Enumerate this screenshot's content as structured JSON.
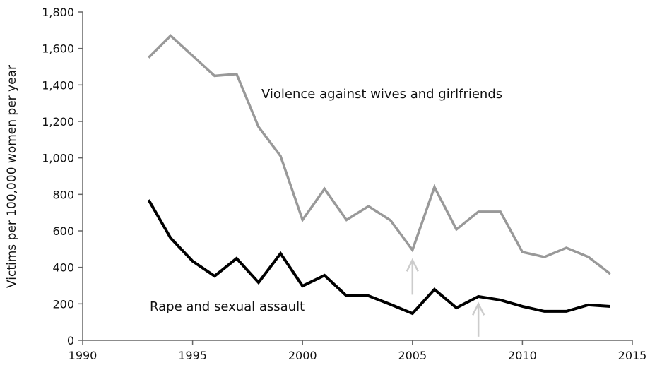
{
  "chart_data": {
    "type": "line",
    "title": "",
    "xlabel": "",
    "ylabel": "Victims per 100,000 women per year",
    "xlim": [
      1990,
      2015
    ],
    "ylim": [
      0,
      1800
    ],
    "x_ticks": [
      "1990",
      "1995",
      "2000",
      "2005",
      "2010",
      "2015"
    ],
    "y_ticks": [
      "0",
      "200",
      "400",
      "600",
      "800",
      "1,000",
      "1,200",
      "1,400",
      "1,600",
      "1,800"
    ],
    "grid": false,
    "x": [
      1993,
      1994,
      1995,
      1996,
      1997,
      1998,
      1999,
      2000,
      2001,
      2002,
      2003,
      2004,
      2005,
      2006,
      2007,
      2008,
      2009,
      2010,
      2011,
      2012,
      2013,
      2014
    ],
    "series": [
      {
        "name": "Violence against wives and girlfriends",
        "color": "#999999",
        "values": [
          1550,
          1670,
          1560,
          1450,
          1460,
          1170,
          1010,
          660,
          830,
          660,
          735,
          658,
          495,
          840,
          608,
          705,
          705,
          484,
          457,
          507,
          457,
          364
        ]
      },
      {
        "name": "Rape and sexual assault",
        "color": "#000000",
        "values": [
          770,
          561,
          434,
          352,
          449,
          317,
          476,
          298,
          356,
          244,
          244,
          197,
          147,
          279,
          178,
          240,
          221,
          186,
          159,
          159,
          194,
          186
        ]
      }
    ],
    "annotations": [
      {
        "type": "arrow",
        "x": 2005,
        "from": 250,
        "to": 440,
        "color": "#cccccc"
      },
      {
        "type": "arrow",
        "x": 2008,
        "from": 20,
        "to": 200,
        "color": "#cccccc"
      }
    ]
  }
}
